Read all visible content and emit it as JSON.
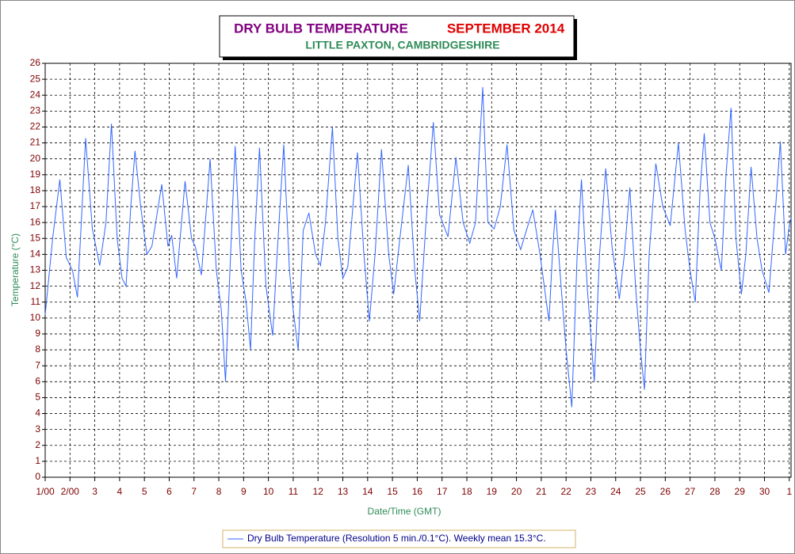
{
  "chart_data": {
    "type": "line",
    "title": "DRY BULB TEMPERATURE",
    "title_month": "SEPTEMBER 2014",
    "subtitle": "LITTLE PAXTON, CAMBRIDGESHIRE",
    "x_label": "Date/Time (GMT)",
    "y_label": "Temperature (°C)",
    "xlim": [
      1,
      31.07
    ],
    "ylim": [
      0,
      26
    ],
    "xticks": [
      {
        "value": 1,
        "label": "1/00"
      },
      {
        "value": 2,
        "label": "2/00"
      },
      3,
      4,
      5,
      6,
      7,
      8,
      9,
      10,
      11,
      12,
      13,
      14,
      15,
      16,
      17,
      18,
      19,
      20,
      21,
      22,
      23,
      24,
      25,
      26,
      27,
      28,
      29,
      30,
      {
        "value": 31,
        "label": "1"
      }
    ],
    "yticks": [
      0,
      1,
      2,
      3,
      4,
      5,
      6,
      7,
      8,
      9,
      10,
      11,
      12,
      13,
      14,
      15,
      16,
      17,
      18,
      19,
      20,
      21,
      22,
      23,
      24,
      25,
      26
    ],
    "grid": true,
    "legend": "bottom",
    "x": [
      1.0,
      1.3,
      1.59,
      1.85,
      2.1,
      2.3,
      2.63,
      2.9,
      3.2,
      3.45,
      3.67,
      3.9,
      4.1,
      4.26,
      4.45,
      4.62,
      4.85,
      5.1,
      5.3,
      5.7,
      5.95,
      6.1,
      6.3,
      6.64,
      6.9,
      7.05,
      7.3,
      7.65,
      7.9,
      8.1,
      8.27,
      8.45,
      8.66,
      8.9,
      9.1,
      9.28,
      9.45,
      9.64,
      9.9,
      10.17,
      10.35,
      10.62,
      10.85,
      11.0,
      11.2,
      11.4,
      11.63,
      11.9,
      12.1,
      12.3,
      12.58,
      12.8,
      13.0,
      13.2,
      13.59,
      13.85,
      14.07,
      14.3,
      14.56,
      14.85,
      15.05,
      15.3,
      15.64,
      15.9,
      16.1,
      16.35,
      16.65,
      16.9,
      17.24,
      17.56,
      17.85,
      18.12,
      18.35,
      18.64,
      18.85,
      19.1,
      19.35,
      19.62,
      19.9,
      20.17,
      20.4,
      20.66,
      20.95,
      21.31,
      21.45,
      21.57,
      21.8,
      22.0,
      22.23,
      22.45,
      22.62,
      22.85,
      23.14,
      23.35,
      23.6,
      23.85,
      24.15,
      24.35,
      24.57,
      24.8,
      25.0,
      25.16,
      25.35,
      25.62,
      25.9,
      26.2,
      26.53,
      26.8,
      27.0,
      27.21,
      27.4,
      27.57,
      27.8,
      28.0,
      28.26,
      28.45,
      28.65,
      28.85,
      29.07,
      29.25,
      29.46,
      29.7,
      29.9,
      30.18,
      30.45,
      30.64,
      30.85,
      31.0,
      31.07
    ],
    "series": [
      {
        "name": "Dry Bulb Temperature (Resolution 5 min./0.1°C). Weekly mean 15.3°C.",
        "color": "#3366ff",
        "values": [
          10.2,
          15,
          18.7,
          13.8,
          13,
          11.3,
          21.3,
          15.6,
          13.3,
          16,
          22.2,
          15,
          12.5,
          12,
          17,
          20.5,
          17,
          14,
          14.5,
          18.4,
          14.5,
          15.2,
          12.5,
          18.6,
          15,
          14.5,
          12.7,
          20,
          13,
          10.5,
          6,
          13,
          20.8,
          13,
          11,
          8,
          15,
          20.7,
          12,
          8.9,
          14,
          20.9,
          13,
          10.5,
          8,
          15.5,
          16.6,
          14,
          13.3,
          16,
          22,
          15,
          12.5,
          13.2,
          20.4,
          14,
          9.8,
          14,
          20.6,
          14,
          11.5,
          15,
          19.6,
          13,
          9.8,
          16,
          22.3,
          16.5,
          15.1,
          20.1,
          16,
          14.7,
          16,
          24.5,
          16,
          15.6,
          17,
          20.9,
          15.5,
          14.3,
          15.5,
          16.8,
          14,
          9.8,
          14,
          16.8,
          12,
          8,
          4.4,
          14,
          18.7,
          12,
          6,
          14,
          19.4,
          14.5,
          11.2,
          14,
          18.2,
          12,
          8,
          5.5,
          14,
          19.7,
          17,
          15.8,
          21,
          15.5,
          13,
          11,
          18,
          21.6,
          16,
          15,
          13,
          19,
          23.2,
          15,
          11.5,
          14,
          19.5,
          15,
          13,
          11.6,
          17,
          21.1,
          14,
          15.8,
          16.3
        ]
      }
    ]
  }
}
